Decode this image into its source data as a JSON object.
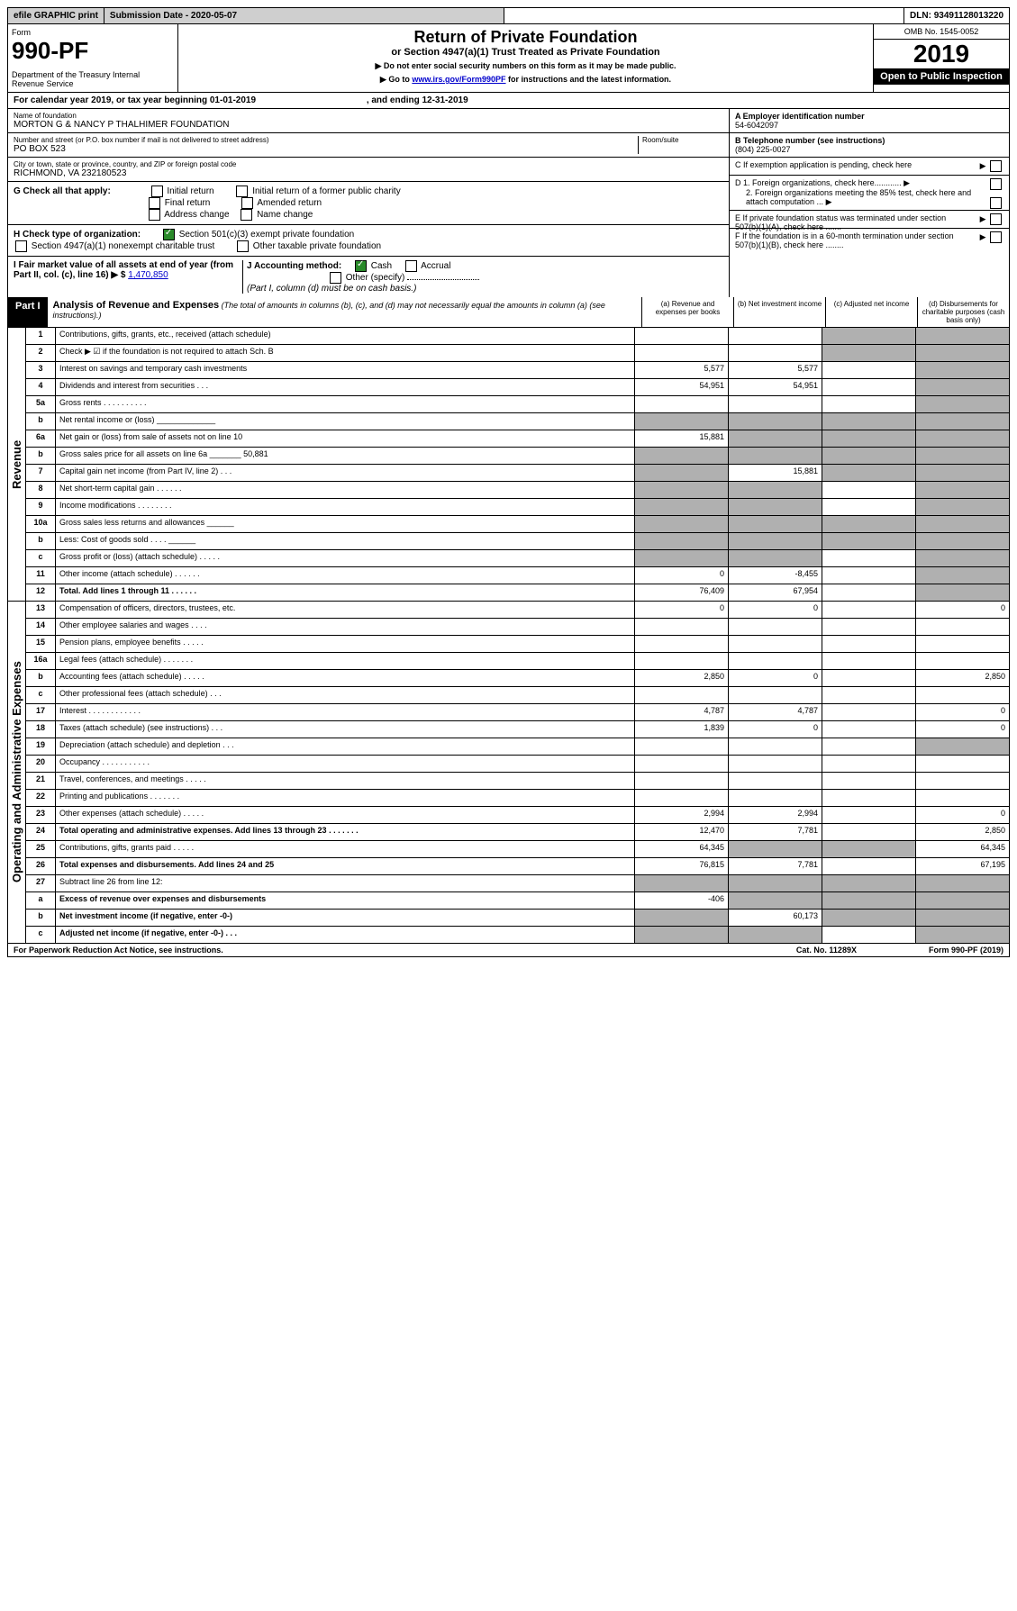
{
  "topBar": {
    "efile": "efile GRAPHIC print",
    "subDate": "Submission Date - 2020-05-07",
    "dln": "DLN: 93491128013220"
  },
  "header": {
    "formLabel": "Form",
    "formNum": "990-PF",
    "dept": "Department of the Treasury\nInternal Revenue Service",
    "title": "Return of Private Foundation",
    "subtitle": "or Section 4947(a)(1) Trust Treated as Private Foundation",
    "inst1": "▶ Do not enter social security numbers on this form as it may be made public.",
    "inst2pre": "▶ Go to ",
    "inst2link": "www.irs.gov/Form990PF",
    "inst2post": " for instructions and the latest information.",
    "omb": "OMB No. 1545-0052",
    "year": "2019",
    "open": "Open to Public Inspection"
  },
  "calendar": {
    "text": "For calendar year 2019, or tax year beginning 01-01-2019",
    "ending": ", and ending 12-31-2019"
  },
  "info": {
    "nameLabel": "Name of foundation",
    "name": "MORTON G & NANCY P THALHIMER FOUNDATION",
    "addrLabel": "Number and street (or P.O. box number if mail is not delivered to street address)",
    "addr": "PO BOX 523",
    "roomLabel": "Room/suite",
    "cityLabel": "City or town, state or province, country, and ZIP or foreign postal code",
    "city": "RICHMOND, VA  232180523",
    "einLabel": "A Employer identification number",
    "ein": "54-6042097",
    "telLabel": "B Telephone number (see instructions)",
    "tel": "(804) 225-0027",
    "cLabel": "C If exemption application is pending, check here",
    "d1": "D 1. Foreign organizations, check here............",
    "d2": "2. Foreign organizations meeting the 85% test, check here and attach computation ...",
    "eLabel": "E  If private foundation status was terminated under section 507(b)(1)(A), check here .......",
    "fLabel": "F  If the foundation is in a 60-month termination under section 507(b)(1)(B), check here ........"
  },
  "checks": {
    "gLabel": "G Check all that apply:",
    "g1": "Initial return",
    "g2": "Initial return of a former public charity",
    "g3": "Final return",
    "g4": "Amended return",
    "g5": "Address change",
    "g6": "Name change",
    "hLabel": "H Check type of organization:",
    "h1": "Section 501(c)(3) exempt private foundation",
    "h2": "Section 4947(a)(1) nonexempt charitable trust",
    "h3": "Other taxable private foundation",
    "iLabel": "I Fair market value of all assets at end of year (from Part II, col. (c), line 16) ▶ $ ",
    "iVal": "1,470,850",
    "jLabel": "J Accounting method:",
    "j1": "Cash",
    "j2": "Accrual",
    "j3": "Other (specify)",
    "jNote": "(Part I, column (d) must be on cash basis.)"
  },
  "part1": {
    "label": "Part I",
    "title": "Analysis of Revenue and Expenses",
    "note": " (The total of amounts in columns (b), (c), and (d) may not necessarily equal the amounts in column (a) (see instructions).)",
    "colA": "(a) Revenue and expenses per books",
    "colB": "(b) Net investment income",
    "colC": "(c) Adjusted net income",
    "colD": "(d) Disbursements for charitable purposes (cash basis only)"
  },
  "sideRevenue": "Revenue",
  "sideExpenses": "Operating and Administrative Expenses",
  "rows": [
    {
      "n": "1",
      "d": "Contributions, gifts, grants, etc., received (attach schedule)",
      "a": "",
      "b": "",
      "c": "g",
      "dd": "g"
    },
    {
      "n": "2",
      "d": "Check ▶ ☑ if the foundation is not required to attach Sch. B",
      "dots": true,
      "a": "",
      "b": "",
      "c": "g",
      "dd": "g"
    },
    {
      "n": "3",
      "d": "Interest on savings and temporary cash investments",
      "a": "5,577",
      "b": "5,577",
      "c": "",
      "dd": "g"
    },
    {
      "n": "4",
      "d": "Dividends and interest from securities    .   .   .",
      "a": "54,951",
      "b": "54,951",
      "c": "",
      "dd": "g"
    },
    {
      "n": "5a",
      "d": "Gross rents    .    .    .    .    .    .    .    .    .    .",
      "a": "",
      "b": "",
      "c": "",
      "dd": "g"
    },
    {
      "n": "b",
      "d": "Net rental income or (loss) _____________",
      "a": "g",
      "b": "g",
      "c": "g",
      "dd": "g"
    },
    {
      "n": "6a",
      "d": "Net gain or (loss) from sale of assets not on line 10",
      "a": "15,881",
      "b": "g",
      "c": "g",
      "dd": "g"
    },
    {
      "n": "b",
      "d": "Gross sales price for all assets on line 6a _______ 50,881",
      "a": "g",
      "b": "g",
      "c": "g",
      "dd": "g"
    },
    {
      "n": "7",
      "d": "Capital gain net income (from Part IV, line 2)    .   .   .",
      "a": "g",
      "b": "15,881",
      "c": "g",
      "dd": "g"
    },
    {
      "n": "8",
      "d": "Net short-term capital gain    .    .    .    .    .    .",
      "a": "g",
      "b": "g",
      "c": "",
      "dd": "g"
    },
    {
      "n": "9",
      "d": "Income modifications    .    .    .    .    .    .    .    .",
      "a": "g",
      "b": "g",
      "c": "",
      "dd": "g"
    },
    {
      "n": "10a",
      "d": "Gross sales less returns and allowances ______",
      "a": "g",
      "b": "g",
      "c": "g",
      "dd": "g"
    },
    {
      "n": "b",
      "d": "Less: Cost of goods sold    .    .    .    . ______",
      "a": "g",
      "b": "g",
      "c": "g",
      "dd": "g"
    },
    {
      "n": "c",
      "d": "Gross profit or (loss) (attach schedule)    .    .    .    .    .",
      "a": "g",
      "b": "g",
      "c": "",
      "dd": "g"
    },
    {
      "n": "11",
      "d": "Other income (attach schedule)    .    .    .    .    .    .",
      "a": "0",
      "b": "-8,455",
      "c": "",
      "dd": "g"
    },
    {
      "n": "12",
      "d": "Total. Add lines 1 through 11    .    .    .    .    .    .",
      "bold": true,
      "a": "76,409",
      "b": "67,954",
      "c": "",
      "dd": "g"
    }
  ],
  "expRows": [
    {
      "n": "13",
      "d": "Compensation of officers, directors, trustees, etc.",
      "a": "0",
      "b": "0",
      "c": "",
      "dd": "0"
    },
    {
      "n": "14",
      "d": "Other employee salaries and wages    .    .    .    .",
      "a": "",
      "b": "",
      "c": "",
      "dd": ""
    },
    {
      "n": "15",
      "d": "Pension plans, employee benefits    .    .    .    .    .",
      "a": "",
      "b": "",
      "c": "",
      "dd": ""
    },
    {
      "n": "16a",
      "d": "Legal fees (attach schedule)    .    .    .    .    .    .    .",
      "a": "",
      "b": "",
      "c": "",
      "dd": ""
    },
    {
      "n": "b",
      "d": "Accounting fees (attach schedule)    .    .    .    .    .",
      "a": "2,850",
      "b": "0",
      "c": "",
      "dd": "2,850"
    },
    {
      "n": "c",
      "d": "Other professional fees (attach schedule)    .    .    .",
      "a": "",
      "b": "",
      "c": "",
      "dd": ""
    },
    {
      "n": "17",
      "d": "Interest    .    .    .    .    .    .    .    .    .    .    .    .",
      "a": "4,787",
      "b": "4,787",
      "c": "",
      "dd": "0"
    },
    {
      "n": "18",
      "d": "Taxes (attach schedule) (see instructions)    .   .   .",
      "a": "1,839",
      "b": "0",
      "c": "",
      "dd": "0"
    },
    {
      "n": "19",
      "d": "Depreciation (attach schedule) and depletion    .   .   .",
      "a": "",
      "b": "",
      "c": "",
      "dd": "g"
    },
    {
      "n": "20",
      "d": "Occupancy    .    .    .    .    .    .    .    .    .    .    .",
      "a": "",
      "b": "",
      "c": "",
      "dd": ""
    },
    {
      "n": "21",
      "d": "Travel, conferences, and meetings    .    .    .    .    .",
      "a": "",
      "b": "",
      "c": "",
      "dd": ""
    },
    {
      "n": "22",
      "d": "Printing and publications    .    .    .    .    .    .    .",
      "a": "",
      "b": "",
      "c": "",
      "dd": ""
    },
    {
      "n": "23",
      "d": "Other expenses (attach schedule)    .    .    .    .    .",
      "a": "2,994",
      "b": "2,994",
      "c": "",
      "dd": "0"
    },
    {
      "n": "24",
      "d": "Total operating and administrative expenses. Add lines 13 through 23    .    .    .    .    .    .    .",
      "bold": true,
      "a": "12,470",
      "b": "7,781",
      "c": "",
      "dd": "2,850"
    },
    {
      "n": "25",
      "d": "Contributions, gifts, grants paid    .    .    .    .    .",
      "a": "64,345",
      "b": "g",
      "c": "g",
      "dd": "64,345"
    },
    {
      "n": "26",
      "d": "Total expenses and disbursements. Add lines 24 and 25",
      "bold": true,
      "a": "76,815",
      "b": "7,781",
      "c": "",
      "dd": "67,195"
    },
    {
      "n": "27",
      "d": "Subtract line 26 from line 12:",
      "a": "g",
      "b": "g",
      "c": "g",
      "dd": "g"
    },
    {
      "n": "a",
      "d": "Excess of revenue over expenses and disbursements",
      "bold": true,
      "a": "-406",
      "b": "g",
      "c": "g",
      "dd": "g"
    },
    {
      "n": "b",
      "d": "Net investment income (if negative, enter -0-)",
      "bold": true,
      "a": "g",
      "b": "60,173",
      "c": "g",
      "dd": "g"
    },
    {
      "n": "c",
      "d": "Adjusted net income (if negative, enter -0-)    .   .   .",
      "bold": true,
      "a": "g",
      "b": "g",
      "c": "",
      "dd": "g"
    }
  ],
  "footer": {
    "left": "For Paperwork Reduction Act Notice, see instructions.",
    "mid": "Cat. No. 11289X",
    "right": "Form 990-PF (2019)"
  }
}
